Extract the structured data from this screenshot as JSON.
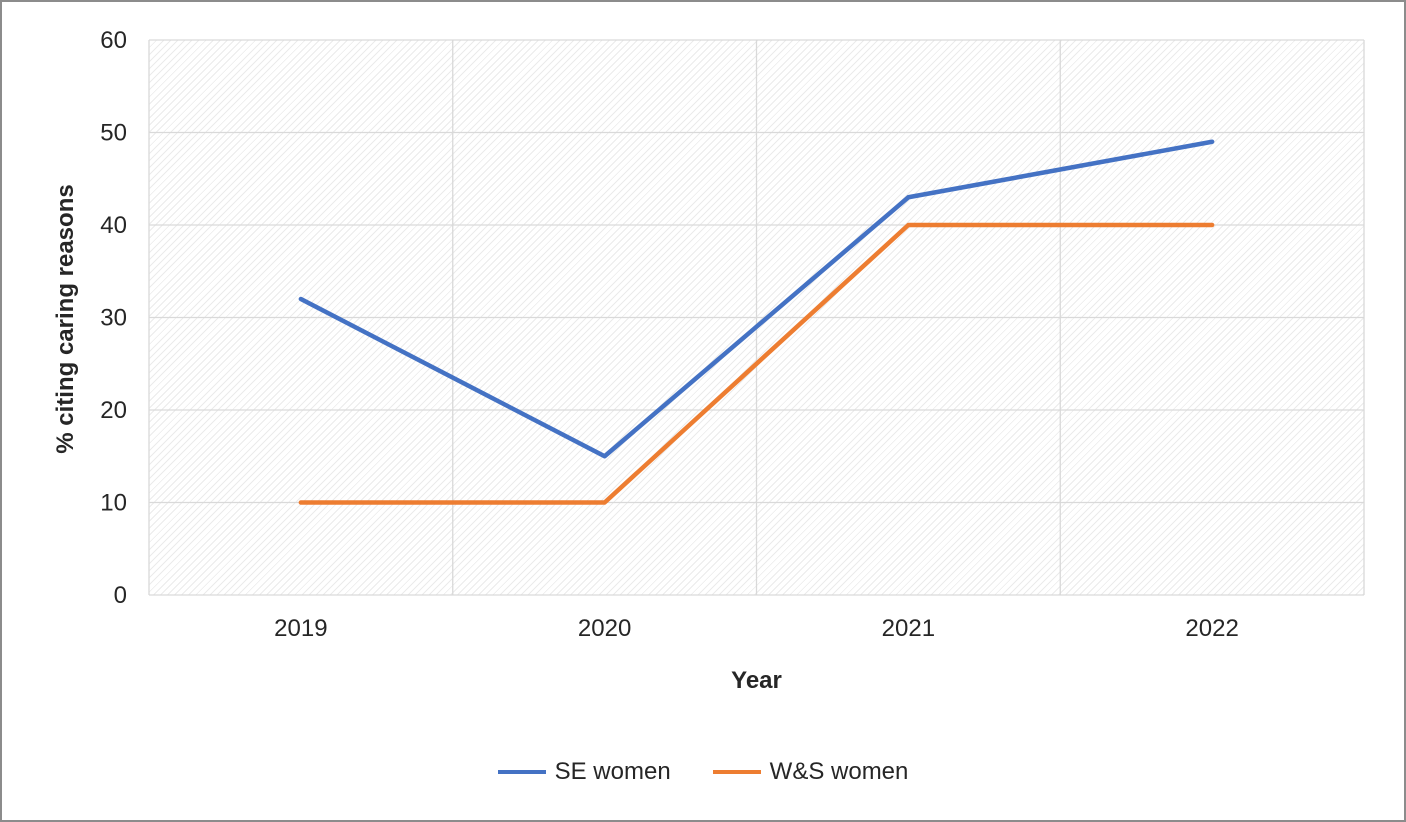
{
  "chart_data": {
    "type": "line",
    "title": "",
    "xlabel": "Year",
    "ylabel": "% citing caring reasons",
    "categories": [
      "2019",
      "2020",
      "2021",
      "2022"
    ],
    "series": [
      {
        "name": "SE women",
        "color": "#4472C4",
        "values": [
          32,
          15,
          43,
          49
        ]
      },
      {
        "name": "W&S women",
        "color": "#ED7D31",
        "values": [
          10,
          10,
          40,
          40
        ]
      }
    ],
    "ylim": [
      0,
      60
    ],
    "ytick_step": 10,
    "yticks": [
      0,
      10,
      20,
      30,
      40,
      50,
      60
    ],
    "grid": true,
    "gridline_color": "#d9d9d9",
    "axis_text_color": "#262626",
    "legend_position": "bottom",
    "plot_background": "diagonal-hatch"
  }
}
